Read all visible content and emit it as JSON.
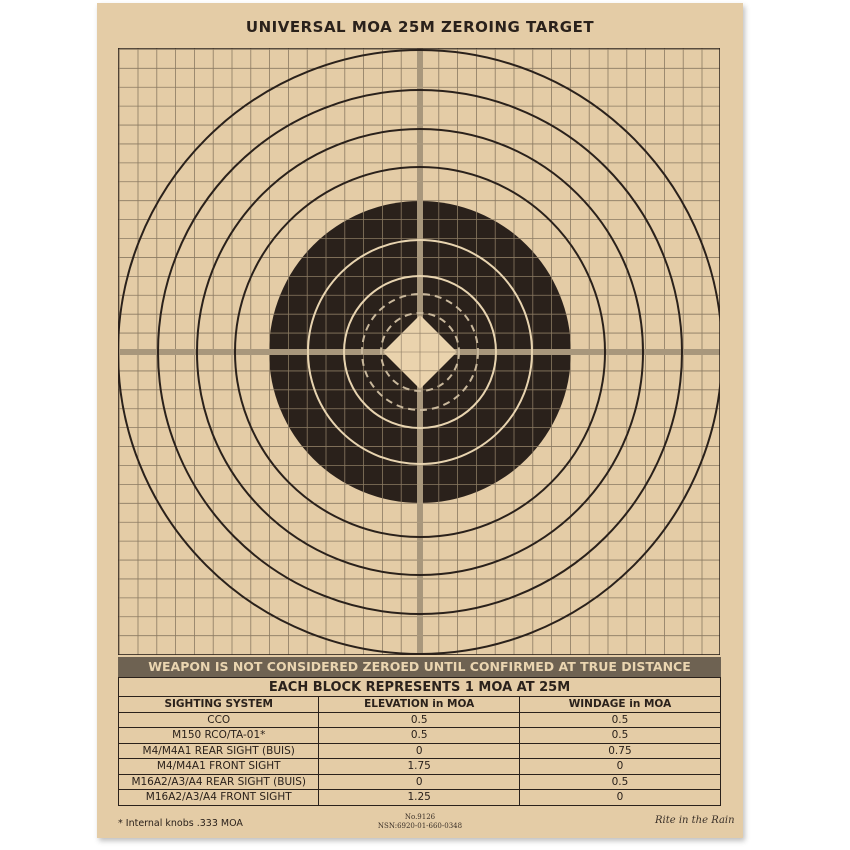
{
  "title": "UNIVERSAL MOA 25M ZEROING TARGET",
  "colors": {
    "paper": "#e4cca6",
    "ink": "#2a211b",
    "grid": "#8a7a62",
    "crosshair": "#a8977c",
    "banner": "#6e6252"
  },
  "banner": "WEAPON IS NOT CONSIDERED ZEROED UNTIL CONFIRMED AT TRUE DISTANCE",
  "table": {
    "caption": "EACH BLOCK REPRESENTS 1 MOA AT 25M",
    "columns": [
      "SIGHTING SYSTEM",
      "ELEVATION in MOA",
      "WINDAGE in MOA"
    ],
    "rows": [
      [
        "CCO",
        "0.5",
        "0.5"
      ],
      [
        "M150 RCO/TA-01*",
        "0.5",
        "0.5"
      ],
      [
        "M4/M4A1 REAR SIGHT (BUIS)",
        "0",
        "0.75"
      ],
      [
        "M4/M4A1 FRONT SIGHT",
        "1.75",
        "0"
      ],
      [
        "M16A2/A3/A4 REAR SIGHT (BUIS)",
        "0",
        "0.5"
      ],
      [
        "M16A2/A3/A4 FRONT SIGHT",
        "1.25",
        "0"
      ]
    ]
  },
  "footnote": "* Internal knobs .333 MOA",
  "number": "No.9126",
  "nsn": "NSN:6920-01-660-0348",
  "brand": "Rite in the Rain"
}
